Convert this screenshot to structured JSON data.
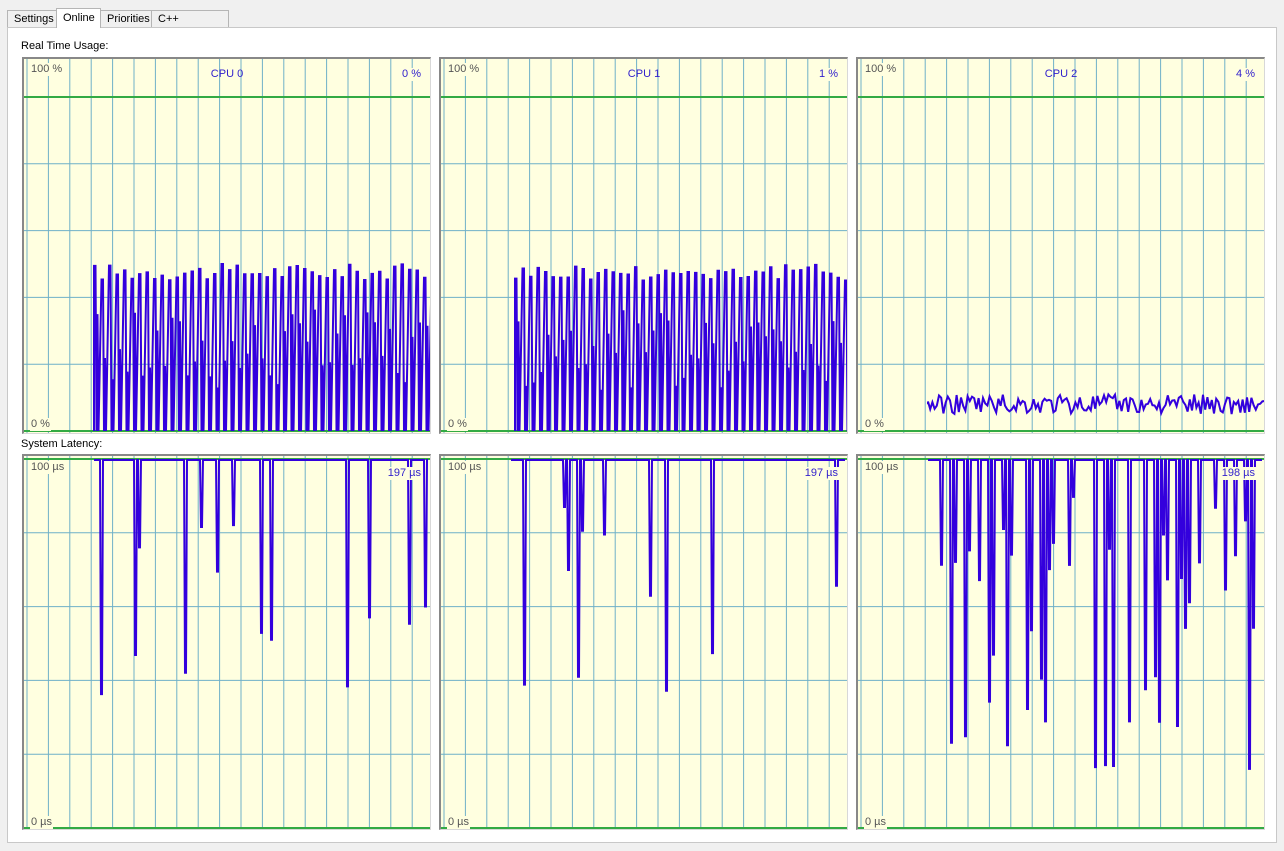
{
  "tabs": [
    {
      "label": "Settings",
      "active": false
    },
    {
      "label": "Online",
      "active": true
    },
    {
      "label": "Priorities",
      "active": false
    },
    {
      "label": "C++ Debugger",
      "active": false
    }
  ],
  "sections": {
    "realtime_label": "Real Time Usage:",
    "latency_label": "System Latency:"
  },
  "colors": {
    "graph_bg": "#ffffe0",
    "grid": "#6fb0c8",
    "baseline": "#33aa44",
    "trace": "#3300dd",
    "text": "#3322cc"
  },
  "cpu_graphs": [
    {
      "title": "CPU 0",
      "value": "0 %",
      "max_label": "100 %",
      "min_label": "0 %",
      "activity_start": 0.17,
      "level": 0.32,
      "variability": 0.45,
      "pattern": "bursty"
    },
    {
      "title": "CPU 1",
      "value": "1 %",
      "max_label": "100 %",
      "min_label": "0 %",
      "activity_start": 0.18,
      "level": 0.32,
      "variability": 0.45,
      "pattern": "bursty"
    },
    {
      "title": "CPU 2",
      "value": "4 %",
      "max_label": "100 %",
      "min_label": "0 %",
      "activity_start": 0.17,
      "level": 0.08,
      "variability": 0.03,
      "pattern": "low"
    }
  ],
  "latency_graphs": [
    {
      "value": "197 µs",
      "max_label": "100 µs",
      "min_label": "0 µs",
      "spike_density": 0.18,
      "max_depth": 0.6
    },
    {
      "value": "197 µs",
      "max_label": "100 µs",
      "min_label": "0 µs",
      "spike_density": 0.15,
      "max_depth": 0.6
    },
    {
      "value": "198 µs",
      "max_label": "100 µs",
      "min_label": "0 µs",
      "spike_density": 0.45,
      "max_depth": 0.75
    }
  ]
}
